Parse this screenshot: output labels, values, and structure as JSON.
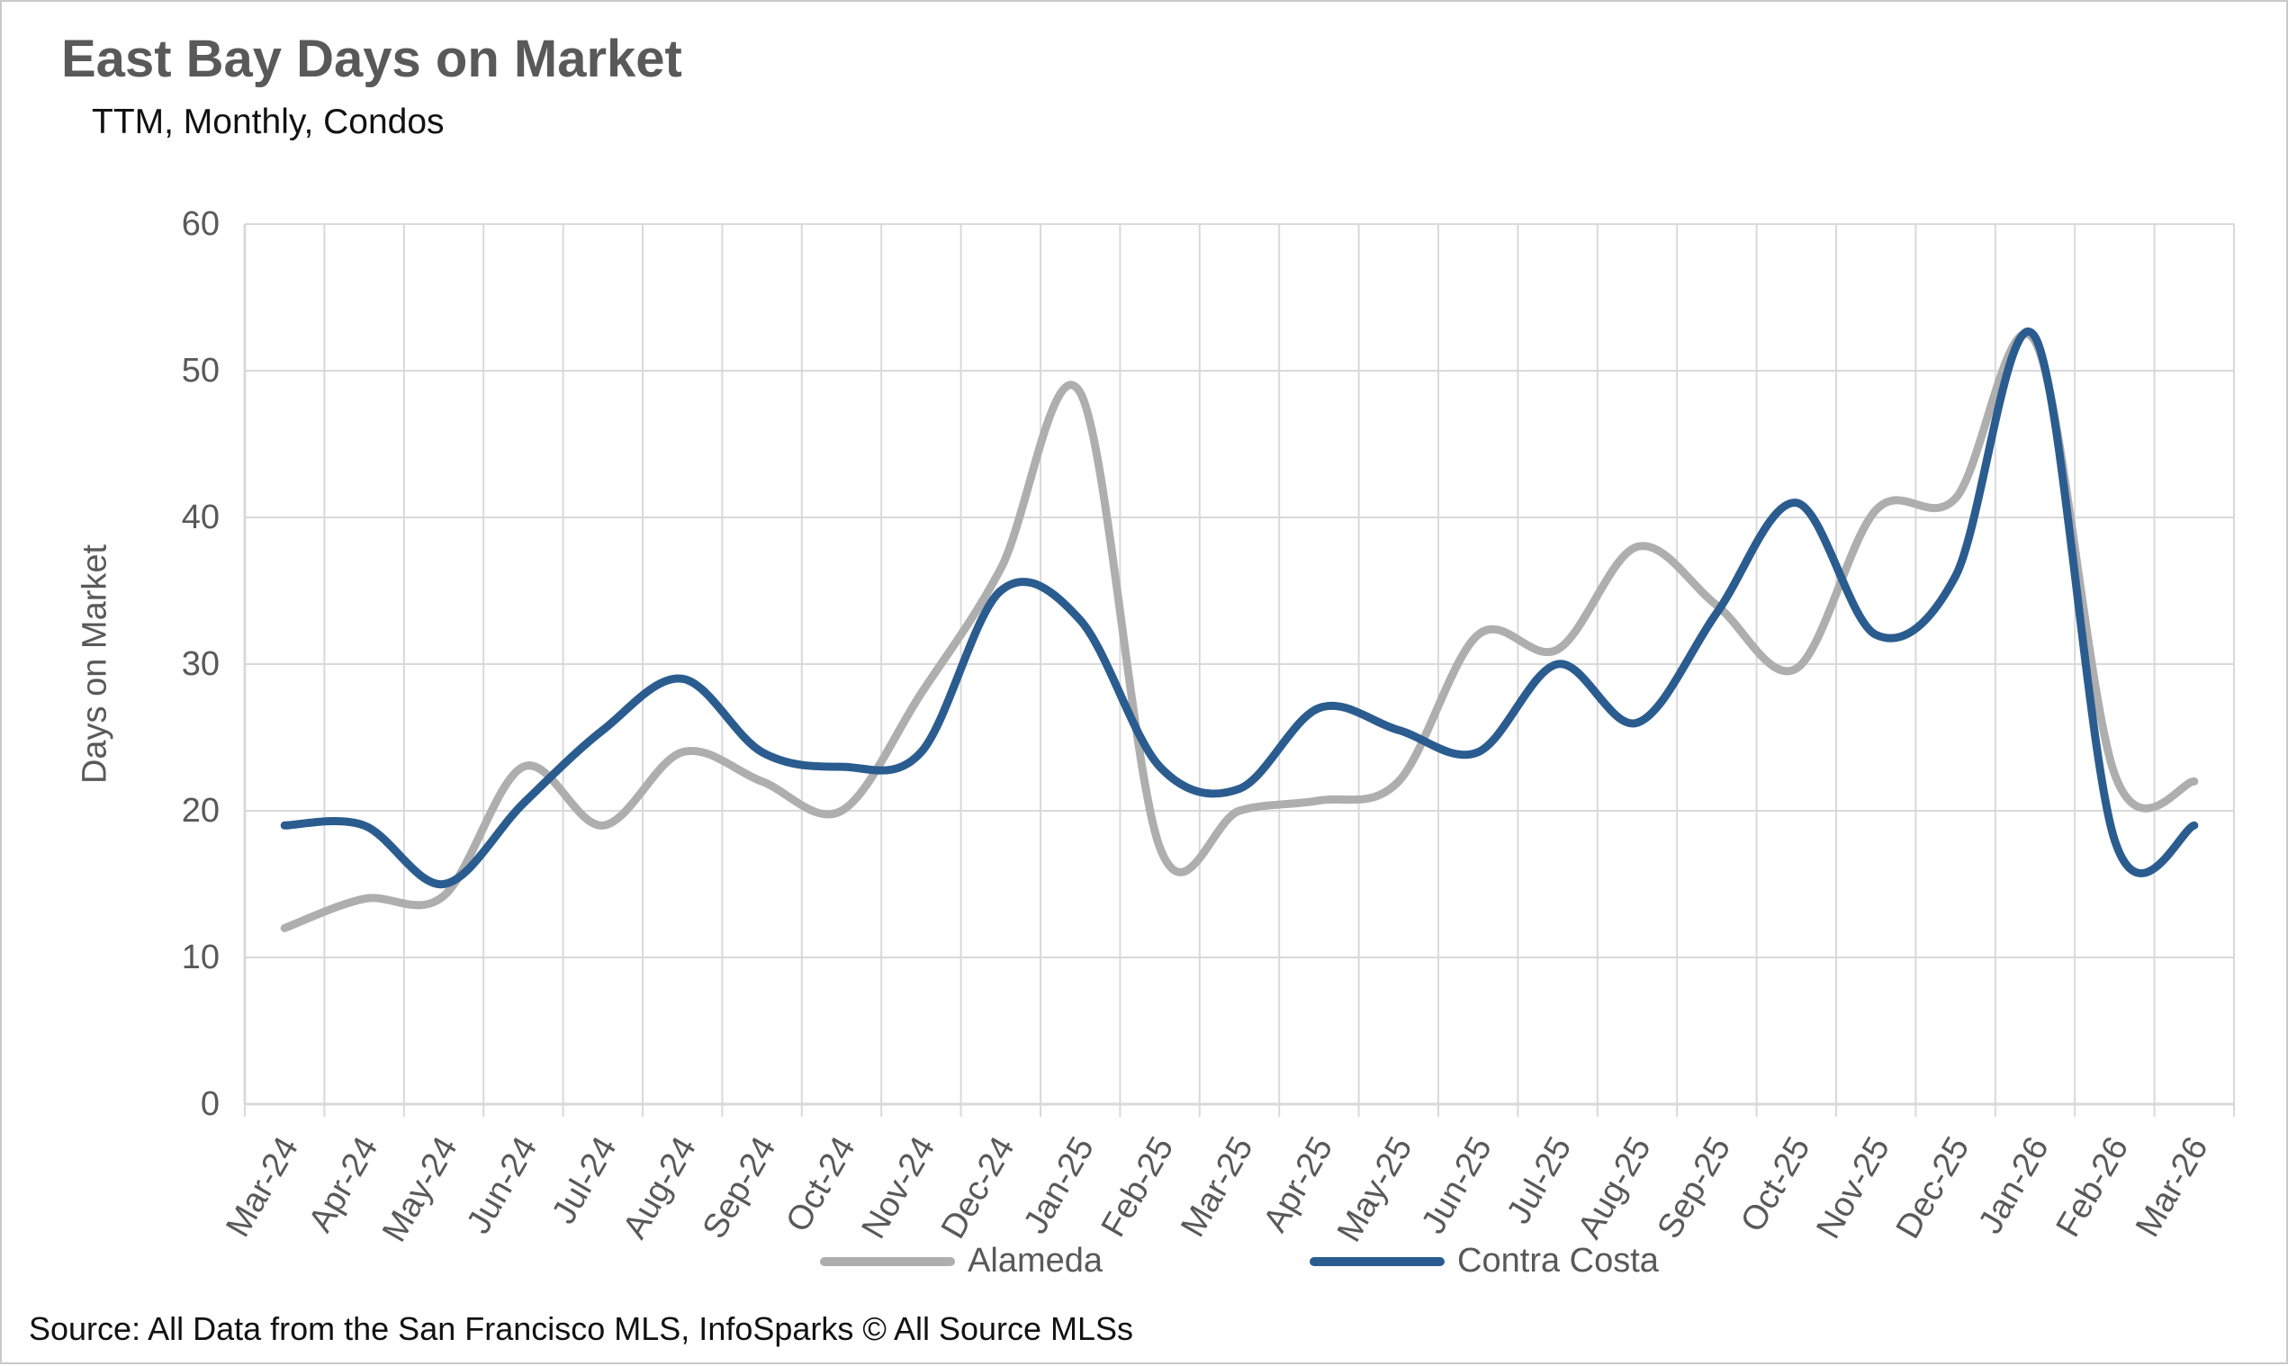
{
  "header": {
    "title": "East Bay Days on Market",
    "subtitle": "TTM, Monthly, Condos"
  },
  "footer": {
    "source": "Source: All Data from the San Francisco MLS, InfoSparks © All Source MLSs"
  },
  "style": {
    "accent_blue": "#2a5c8f",
    "accent_gray": "#aeaeae",
    "grid_color": "#d9d9d9",
    "axis_text_color": "#595959",
    "title_color": "#595959"
  },
  "chart_data": {
    "type": "line",
    "title": "East Bay Days on Market",
    "subtitle": "TTM, Monthly, Condos",
    "xlabel": "",
    "ylabel": "Days on Market",
    "ylim": [
      0,
      60
    ],
    "yticks": [
      0,
      10,
      20,
      30,
      40,
      50,
      60
    ],
    "grid": true,
    "smooth": true,
    "legend_position": "bottom",
    "categories": [
      "Mar-24",
      "Apr-24",
      "May-24",
      "Jun-24",
      "Jul-24",
      "Aug-24",
      "Sep-24",
      "Oct-24",
      "Nov-24",
      "Dec-24",
      "Jan-25",
      "Feb-25",
      "Mar-25",
      "Apr-25",
      "May-25",
      "Jun-25",
      "Jul-25",
      "Aug-25",
      "Sep-25",
      "Oct-25",
      "Nov-25",
      "Dec-25",
      "Jan-26",
      "Feb-26",
      "Mar-26"
    ],
    "series": [
      {
        "name": "Alameda",
        "color": "#aeaeae",
        "values": [
          12,
          14,
          14.2,
          23,
          19,
          24,
          22,
          20,
          28,
          36.5,
          48.5,
          17.5,
          20,
          20.7,
          22,
          32,
          31,
          38,
          34,
          29.7,
          40.5,
          41.3,
          52,
          22.5,
          22
        ]
      },
      {
        "name": "Contra Costa",
        "color": "#2a5c8f",
        "values": [
          19,
          19,
          15,
          20.5,
          25.5,
          29,
          24,
          23,
          24,
          35,
          33,
          23,
          21.5,
          27,
          25.5,
          24,
          30,
          26,
          33.5,
          41,
          32,
          36,
          52.3,
          18,
          19
        ]
      }
    ]
  }
}
